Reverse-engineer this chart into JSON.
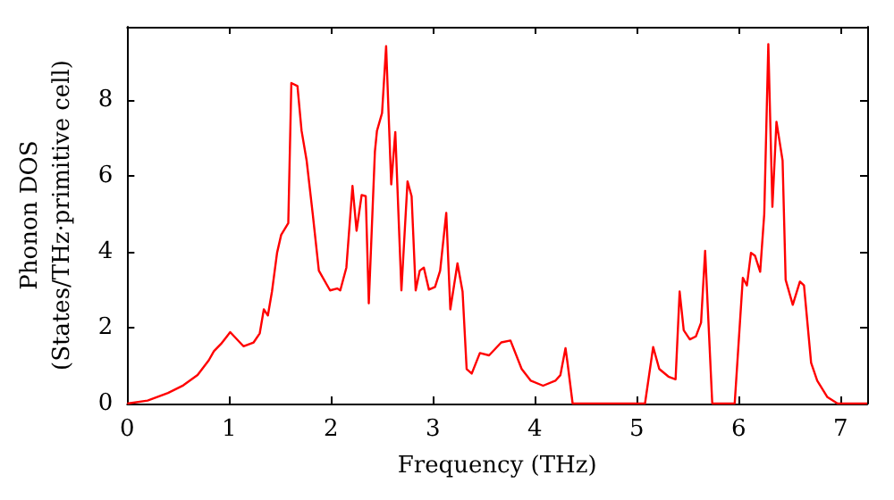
{
  "chart_data": {
    "type": "line",
    "xlabel": "Frequency (THz)",
    "ylabel": "Phonon DOS\n(States/THz·primitive cell)",
    "xlim": [
      0,
      7.26
    ],
    "ylim": [
      0,
      9.92
    ],
    "xticks": [
      0,
      1,
      2,
      3,
      4,
      5,
      6,
      7
    ],
    "yticks": [
      0,
      2,
      4,
      6,
      8
    ],
    "grid": false,
    "marker": "none",
    "line_style": "solid",
    "series": [
      {
        "color": "#ff0000",
        "x": [
          0,
          0.2,
          0.4,
          0.55,
          0.69,
          0.8,
          0.85,
          0.92,
          1.01,
          1.14,
          1.24,
          1.3,
          1.34,
          1.38,
          1.42,
          1.47,
          1.51,
          1.58,
          1.61,
          1.67,
          1.71,
          1.76,
          1.82,
          1.88,
          1.99,
          2.06,
          2.09,
          2.15,
          2.21,
          2.25,
          2.3,
          2.34,
          2.37,
          2.43,
          2.45,
          2.5,
          2.54,
          2.59,
          2.63,
          2.69,
          2.75,
          2.79,
          2.83,
          2.87,
          2.91,
          2.96,
          3.02,
          3.07,
          3.13,
          3.17,
          3.24,
          3.29,
          3.33,
          3.38,
          3.46,
          3.55,
          3.67,
          3.76,
          3.87,
          3.96,
          4.08,
          4.2,
          4.25,
          4.3,
          4.32,
          4.37,
          5.08,
          5.16,
          5.22,
          5.31,
          5.38,
          5.42,
          5.46,
          5.52,
          5.58,
          5.63,
          5.67,
          5.74,
          5.96,
          6.04,
          6.08,
          6.12,
          6.16,
          6.21,
          6.25,
          6.29,
          6.33,
          6.37,
          6.43,
          6.46,
          6.53,
          6.6,
          6.64,
          6.71,
          6.77,
          6.87,
          6.97,
          7.26
        ],
        "values": [
          0,
          0.08,
          0.28,
          0.48,
          0.75,
          1.14,
          1.38,
          1.57,
          1.88,
          1.51,
          1.61,
          1.85,
          2.48,
          2.32,
          2.95,
          3.97,
          4.44,
          4.75,
          8.44,
          8.36,
          7.19,
          6.4,
          4.99,
          3.5,
          2.98,
          3.03,
          2.98,
          3.58,
          5.73,
          4.55,
          5.49,
          5.46,
          2.64,
          6.64,
          7.18,
          7.65,
          9.41,
          5.77,
          7.15,
          2.98,
          5.85,
          5.46,
          2.98,
          3.5,
          3.58,
          3.0,
          3.07,
          3.5,
          5.02,
          2.48,
          3.69,
          2.95,
          0.91,
          0.79,
          1.33,
          1.27,
          1.61,
          1.66,
          0.91,
          0.6,
          0.47,
          0.6,
          0.75,
          1.46,
          1.07,
          0,
          0,
          1.49,
          0.91,
          0.71,
          0.64,
          2.95,
          1.93,
          1.69,
          1.77,
          2.13,
          4.02,
          0,
          0,
          3.31,
          3.11,
          3.97,
          3.89,
          3.47,
          4.99,
          9.46,
          5.18,
          7.42,
          6.4,
          3.26,
          2.6,
          3.21,
          3.11,
          1.07,
          0.6,
          0.17,
          0,
          0
        ]
      }
    ]
  }
}
